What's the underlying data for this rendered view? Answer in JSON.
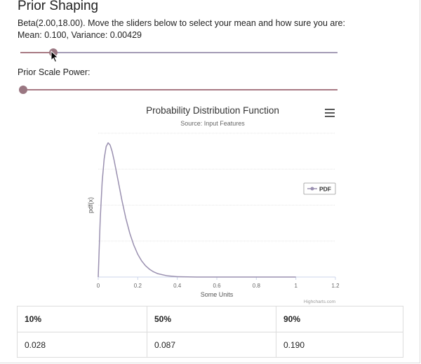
{
  "title": "Prior Shaping",
  "description": {
    "line1": "Beta(2.00,18.00). Move the sliders below to select your mean and how sure you are:",
    "line2": "Mean: 0.100, Variance: 0.00429"
  },
  "mean_slider": {
    "value_fraction": 0.1
  },
  "scale": {
    "label": "Prior Scale Power:",
    "value_fraction": 0.0
  },
  "chart": {
    "menu_icon": "hamburger-icon",
    "credits": "Highcharts.com"
  },
  "chart_data": {
    "type": "line",
    "title": "Probability Distribution Function",
    "subtitle": "Source: Input Features",
    "xlabel": "Some Units",
    "ylabel": "pdf(x)",
    "xlim": [
      0,
      1.2
    ],
    "xticks": [
      "0",
      "0.2",
      "0.4",
      "0.6",
      "0.8",
      "1",
      "1.2"
    ],
    "ylim": [
      0,
      8
    ],
    "grid": true,
    "legend_position": "right",
    "series": [
      {
        "name": "PDF",
        "color": "#9a90b0",
        "distribution": "Beta(2,18)",
        "x": [
          0,
          0.01,
          0.02,
          0.03,
          0.04,
          0.05,
          0.06,
          0.07,
          0.08,
          0.1,
          0.12,
          0.14,
          0.16,
          0.18,
          0.2,
          0.22,
          0.24,
          0.26,
          0.28,
          0.3,
          0.35,
          0.4,
          0.45,
          0.5,
          0.6,
          0.7,
          0.8,
          0.9,
          1.0
        ],
        "values": [
          0,
          3.18,
          5.29,
          6.59,
          7.26,
          7.47,
          7.35,
          7.0,
          6.52,
          5.39,
          4.26,
          3.26,
          2.42,
          1.77,
          1.27,
          0.89,
          0.62,
          0.43,
          0.29,
          0.19,
          0.066,
          0.021,
          0.006,
          0.0015,
          8e-05,
          3e-06,
          0,
          0,
          0
        ]
      }
    ]
  },
  "quantiles": {
    "headers": [
      "10%",
      "50%",
      "90%"
    ],
    "values": [
      "0.028",
      "0.087",
      "0.190"
    ]
  }
}
